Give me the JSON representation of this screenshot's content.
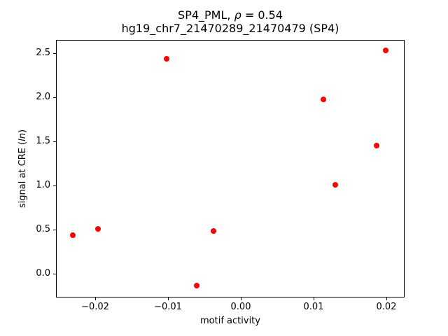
{
  "title": {
    "part1": "SP4_PML, ",
    "rho": "ρ",
    "part2": " = 0.54",
    "line2": "hg19_chr7_21470289_21470479 (SP4)"
  },
  "axes": {
    "xlabel": "motif activity",
    "ylabel_prefix": "signal at CRE (",
    "ylabel_italic": "ln",
    "ylabel_suffix": ")"
  },
  "colors": {
    "marker": "#ff0000",
    "axis": "#000000",
    "background": "#ffffff"
  },
  "chart_data": {
    "type": "scatter",
    "title": "SP4_PML, ρ = 0.54\nhg19_chr7_21470289_21470479 (SP4)",
    "xlabel": "motif activity",
    "ylabel": "signal at CRE (ln)",
    "legend": "none",
    "grid": false,
    "marker": "circle",
    "marker_color": "#ff0000",
    "xlim": [
      -0.0253,
      0.0224
    ],
    "ylim": [
      -0.26,
      2.64
    ],
    "x_ticks": [
      {
        "v": -0.02,
        "label": "−0.02"
      },
      {
        "v": -0.01,
        "label": "−0.01"
      },
      {
        "v": 0.0,
        "label": "0.00"
      },
      {
        "v": 0.01,
        "label": "0.01"
      },
      {
        "v": 0.02,
        "label": "0.02"
      }
    ],
    "y_ticks": [
      {
        "v": 0.0,
        "label": "0.0"
      },
      {
        "v": 0.5,
        "label": "0.5"
      },
      {
        "v": 1.0,
        "label": "1.0"
      },
      {
        "v": 1.5,
        "label": "1.5"
      },
      {
        "v": 2.0,
        "label": "2.0"
      },
      {
        "v": 2.5,
        "label": "2.5"
      }
    ],
    "points": [
      {
        "x": -0.0101,
        "y": 2.43
      },
      {
        "x": 0.02,
        "y": 2.52
      },
      {
        "x": 0.0114,
        "y": 1.97
      },
      {
        "x": 0.0187,
        "y": 1.44
      },
      {
        "x": 0.0131,
        "y": 1.0
      },
      {
        "x": -0.023,
        "y": 0.43
      },
      {
        "x": -0.0195,
        "y": 0.5
      },
      {
        "x": -0.0037,
        "y": 0.48
      },
      {
        "x": -0.006,
        "y": -0.14
      }
    ]
  }
}
